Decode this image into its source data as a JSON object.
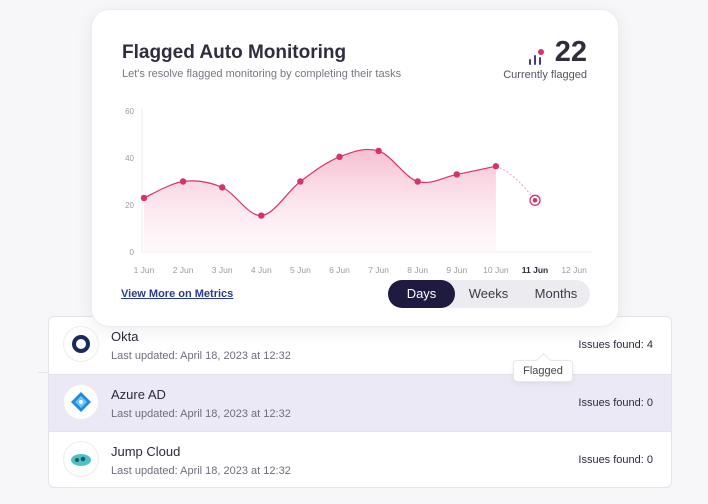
{
  "card": {
    "title": "Flagged Auto Monitoring",
    "subtitle": "Let's resolve flagged monitoring by completing their tasks",
    "flagged_count": "22",
    "flagged_label": "Currently flagged",
    "view_more_link": "View More on Metrics",
    "range_tabs": [
      {
        "label": "Days",
        "active": true
      },
      {
        "label": "Weeks",
        "active": false
      },
      {
        "label": "Months",
        "active": false
      }
    ]
  },
  "chart_data": {
    "type": "area",
    "categories": [
      "1 Jun",
      "2 Jun",
      "3 Jun",
      "4 Jun",
      "5 Jun",
      "6 Jun",
      "7 Jun",
      "8 Jun",
      "9 Jun",
      "10 Jun",
      "11 Jun",
      "12 Jun"
    ],
    "values": [
      23,
      30,
      27.5,
      15.5,
      30,
      40.5,
      43,
      30,
      33,
      36.5,
      22,
      null
    ],
    "projected_index": 10,
    "highlighted_category": "11 Jun",
    "y_ticks": [
      0,
      20,
      40,
      60
    ],
    "ylim": [
      0,
      60
    ],
    "grid": false,
    "line_color": "#d6336c",
    "fill_color": "#f7c9d8"
  },
  "integrations": [
    {
      "name": "Okta",
      "updated": "Last updated: April 18, 2023 at 12:32",
      "issues": "Issues found: 4",
      "icon": "okta-logo-icon"
    },
    {
      "name": "Azure AD",
      "updated": "Last updated: April 18, 2023 at 12:32",
      "issues": "Issues found: 0",
      "icon": "azure-ad-logo-icon"
    },
    {
      "name": "Jump Cloud",
      "updated": "Last updated: April 18, 2023 at 12:32",
      "issues": "Issues found: 0",
      "icon": "jumpcloud-logo-icon"
    }
  ],
  "tooltip": "Flagged"
}
